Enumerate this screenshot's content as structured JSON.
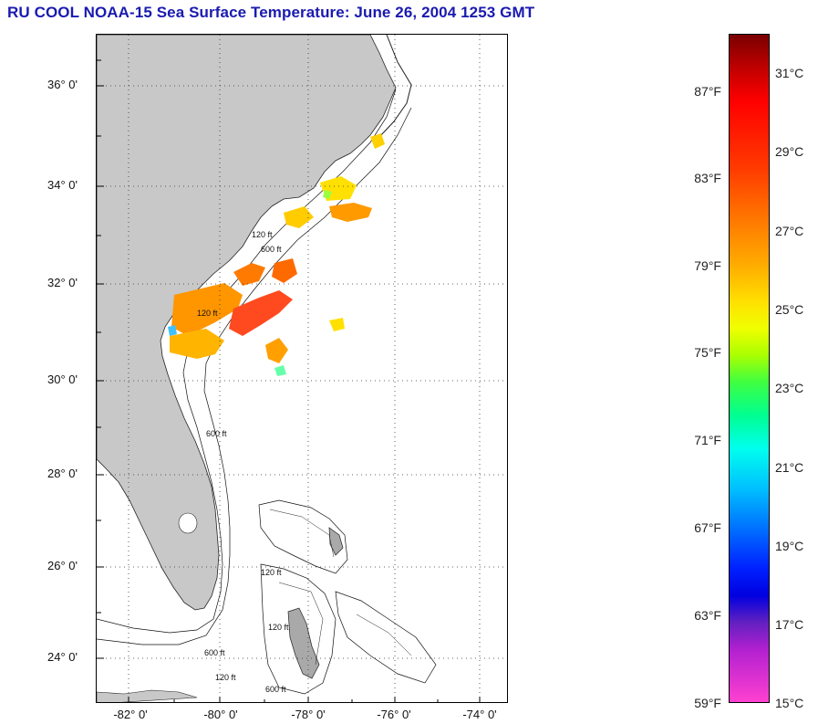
{
  "title": "RU COOL  NOAA-15  Sea Surface Temperature:  June 26, 2004 1253 GMT",
  "map": {
    "lat_labels": [
      {
        "text": "36° 0'",
        "lat": 36
      },
      {
        "text": "34° 0'",
        "lat": 34
      },
      {
        "text": "32° 0'",
        "lat": 32
      },
      {
        "text": "30° 0'",
        "lat": 30
      },
      {
        "text": "28° 0'",
        "lat": 28
      },
      {
        "text": "26° 0'",
        "lat": 26
      },
      {
        "text": "24° 0'",
        "lat": 24
      }
    ],
    "lon_labels": [
      {
        "text": "-82° 0'",
        "lon": -82
      },
      {
        "text": "-80° 0'",
        "lon": -80
      },
      {
        "text": "-78° 0'",
        "lon": -78
      },
      {
        "text": "-76° 0'",
        "lon": -76
      },
      {
        "text": "-74° 0'",
        "lon": -74
      }
    ],
    "contour_labels": [
      "120 ft",
      "600 ft"
    ],
    "colors": {
      "land": "#c8c8c8",
      "ocean": "#ffffff",
      "grid": "#000000"
    }
  },
  "colorbar": {
    "fahrenheit": [
      "87°F",
      "83°F",
      "79°F",
      "75°F",
      "71°F",
      "67°F",
      "63°F",
      "59°F"
    ],
    "celsius": [
      "31°C",
      "29°C",
      "27°C",
      "25°C",
      "23°C",
      "21°C",
      "19°C",
      "17°C",
      "15°C"
    ],
    "range_c": [
      15,
      32
    ]
  }
}
